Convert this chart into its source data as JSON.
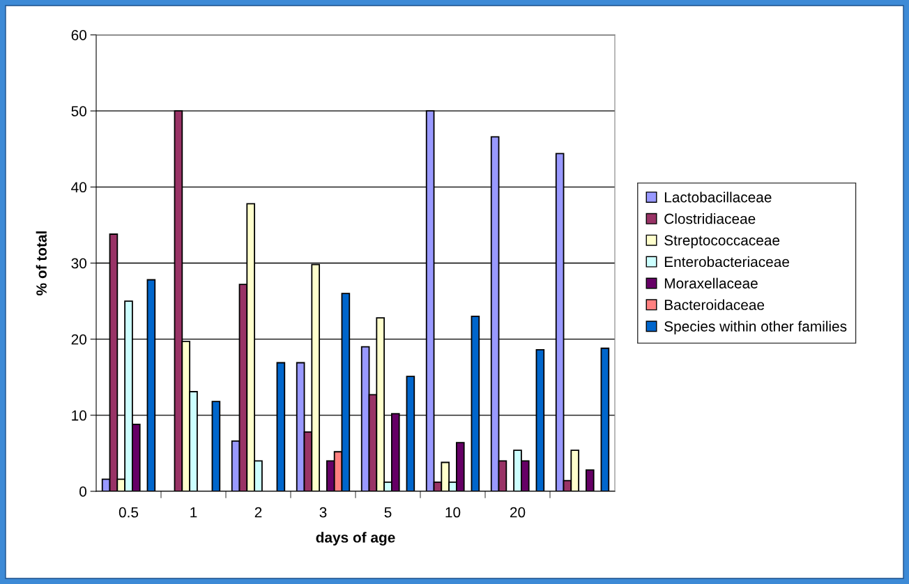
{
  "chart_data": {
    "type": "bar",
    "xlabel": "days of age",
    "ylabel": "% of total",
    "categories": [
      "0.5",
      "1",
      "2",
      "3",
      "5",
      "10",
      "20",
      null
    ],
    "series": [
      {
        "name": "Lactobacillaceae",
        "color": "#9999ff",
        "values": [
          1.6,
          null,
          6.6,
          16.9,
          19.0,
          50.0,
          46.6,
          44.4
        ]
      },
      {
        "name": "Clostridiaceae",
        "color": "#993366",
        "values": [
          33.8,
          50.0,
          27.2,
          7.8,
          12.7,
          1.2,
          4.0,
          1.4
        ]
      },
      {
        "name": "Streptococcaceae",
        "color": "#ffffcc",
        "values": [
          1.6,
          19.7,
          37.8,
          29.8,
          22.8,
          3.8,
          null,
          5.4
        ]
      },
      {
        "name": "Enterobacteriaceae",
        "color": "#ccffff",
        "values": [
          25.0,
          13.1,
          4.0,
          null,
          1.2,
          1.2,
          5.4,
          null
        ]
      },
      {
        "name": "Moraxellaceae",
        "color": "#660066",
        "values": [
          8.8,
          null,
          null,
          4.0,
          10.2,
          6.4,
          4.0,
          2.8
        ]
      },
      {
        "name": "Bacteroidaceae",
        "color": "#ff8080",
        "values": [
          null,
          null,
          null,
          5.2,
          null,
          null,
          null,
          null
        ]
      },
      {
        "name": "Species within other families",
        "color": "#0066cc",
        "values": [
          27.8,
          11.8,
          16.9,
          26.0,
          15.1,
          23.0,
          18.6,
          18.8
        ]
      }
    ],
    "ylim": [
      0,
      60
    ],
    "yticks": [
      0,
      10,
      20,
      30,
      40,
      50,
      60
    ],
    "grid": "y",
    "legend": "right"
  }
}
